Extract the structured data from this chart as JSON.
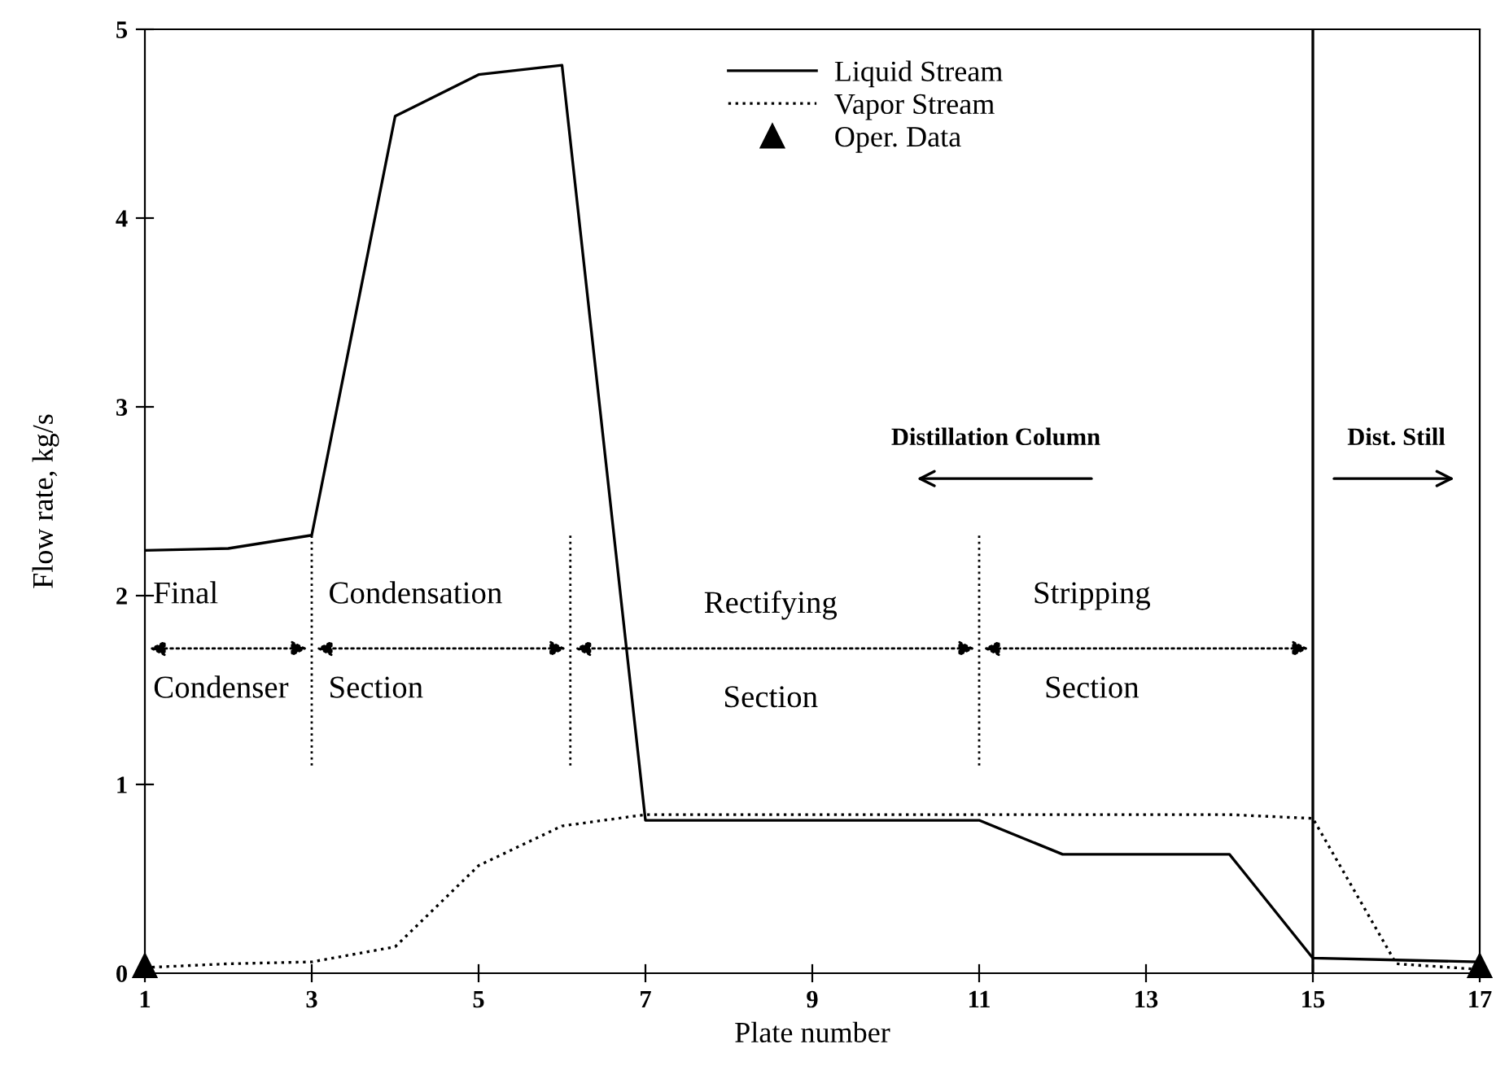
{
  "chart_data": {
    "type": "line",
    "xlabel": "Plate number",
    "ylabel": "Flow rate, kg/s",
    "x": [
      1,
      2,
      3,
      4,
      5,
      6,
      7,
      8,
      9,
      10,
      11,
      12,
      13,
      14,
      15,
      16,
      17
    ],
    "series": [
      {
        "name": "Liquid Stream",
        "color": "#000000",
        "line_style": "solid",
        "values": [
          2.24,
          2.25,
          2.32,
          4.54,
          4.76,
          4.81,
          0.81,
          0.81,
          0.81,
          0.81,
          0.81,
          0.63,
          0.63,
          0.63,
          0.08,
          0.07,
          0.06
        ]
      },
      {
        "name": "Vapor Stream",
        "color": "#000000",
        "line_style": "dotted",
        "values": [
          0.03,
          0.05,
          0.06,
          0.14,
          0.57,
          0.78,
          0.84,
          0.84,
          0.84,
          0.84,
          0.84,
          0.84,
          0.84,
          0.84,
          0.82,
          0.05,
          0.02
        ]
      },
      {
        "name": "Oper. Data",
        "type": "scatter",
        "marker": "triangle",
        "color": "#000000",
        "x": [
          1,
          17
        ],
        "values": [
          0.04,
          0.04
        ]
      }
    ],
    "xlim": [
      1,
      17
    ],
    "ylim": [
      0,
      5
    ],
    "xticks": [
      1,
      3,
      5,
      7,
      9,
      11,
      13,
      15,
      17
    ],
    "yticks": [
      0,
      1,
      2,
      3,
      4,
      5
    ],
    "grid": false,
    "legend": "top center",
    "ref_lines": [
      {
        "axis": "x",
        "value": 15,
        "color": "#000000",
        "line_style": "solid"
      }
    ],
    "annotations": [
      "Final",
      "Condenser",
      "Condensation",
      "Section",
      "Rectifying",
      "Section",
      "Stripping",
      "Section",
      "Distillation Column",
      "Dist. Still"
    ]
  }
}
